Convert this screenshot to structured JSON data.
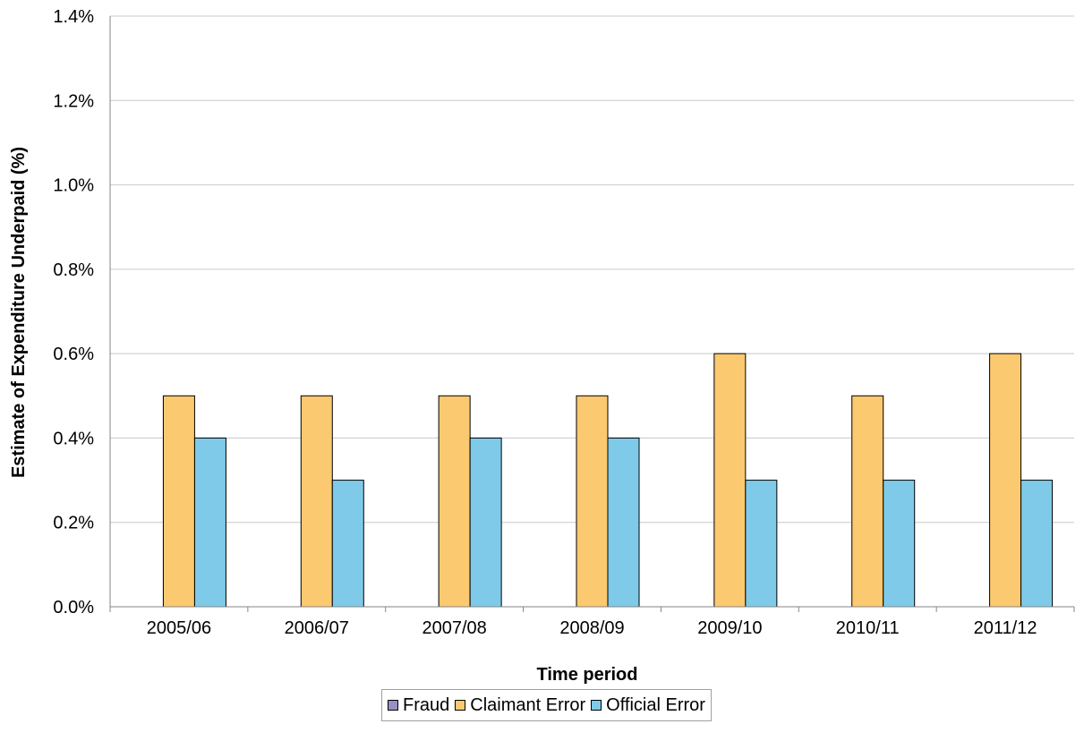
{
  "chart_data": {
    "type": "bar",
    "title": "",
    "xlabel": "Time period",
    "ylabel": "Estimate of Expenditure Underpaid (%)",
    "ylim": [
      0,
      1.4
    ],
    "yticks": [
      "0.0%",
      "0.2%",
      "0.4%",
      "0.6%",
      "0.8%",
      "1.0%",
      "1.2%",
      "1.4%"
    ],
    "categories": [
      "2005/06",
      "2006/07",
      "2007/08",
      "2008/09",
      "2009/10",
      "2010/11",
      "2011/12"
    ],
    "series": [
      {
        "name": "Fraud",
        "color": "#9b8ec4",
        "values": [
          0,
          0,
          0,
          0,
          0,
          0,
          0
        ]
      },
      {
        "name": "Claimant Error",
        "color": "#fbc96f",
        "values": [
          0.5,
          0.5,
          0.5,
          0.5,
          0.6,
          0.5,
          0.6
        ]
      },
      {
        "name": "Official Error",
        "color": "#7ecae8",
        "values": [
          0.4,
          0.3,
          0.4,
          0.4,
          0.3,
          0.3,
          0.3
        ]
      }
    ],
    "grid": true,
    "legend_position": "bottom"
  }
}
